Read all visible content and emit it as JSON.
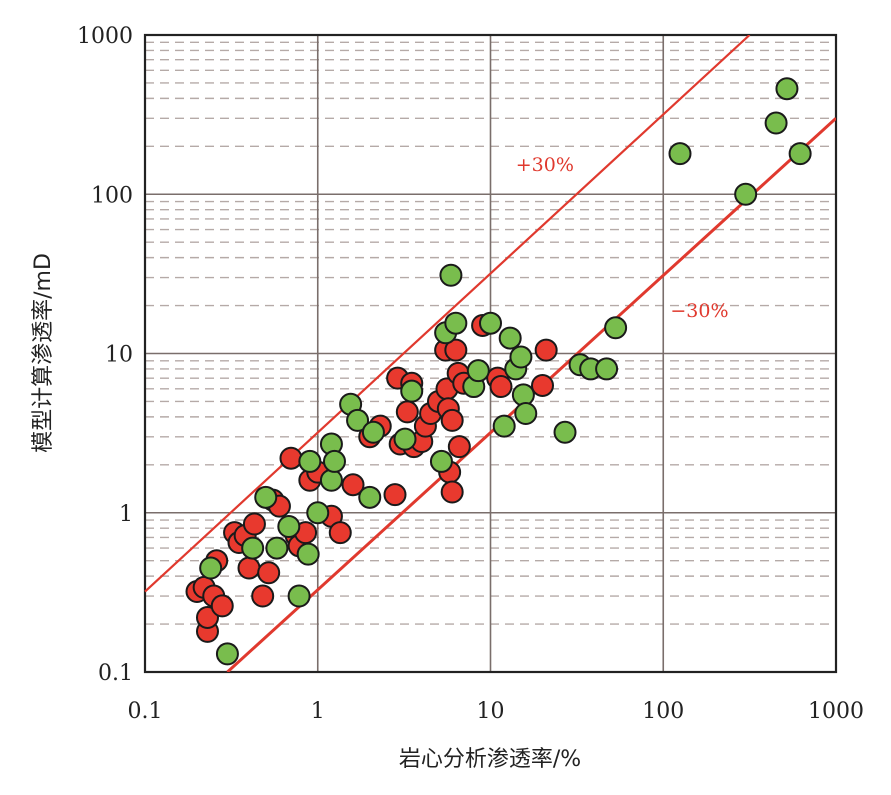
{
  "chart_data": {
    "type": "scatter",
    "scale": {
      "x": "log",
      "y": "log"
    },
    "xlabel": "岩心分析渗透率/%",
    "ylabel": "模型计算渗透率/mD",
    "xlim": [
      0.1,
      1000
    ],
    "ylim": [
      0.1,
      1000
    ],
    "grid": true,
    "x_ticks": [
      {
        "value": 0.1,
        "label": "0.1"
      },
      {
        "value": 1,
        "label": "1"
      },
      {
        "value": 10,
        "label": "10"
      },
      {
        "value": 100,
        "label": "100"
      },
      {
        "value": 1000,
        "label": "1000"
      }
    ],
    "y_ticks": [
      {
        "value": 0.1,
        "label": "0.1"
      },
      {
        "value": 1,
        "label": "1"
      },
      {
        "value": 10,
        "label": "10"
      },
      {
        "value": 100,
        "label": "100"
      },
      {
        "value": 1000,
        "label": "1000"
      }
    ],
    "colors": {
      "red_fill": "#e8392e",
      "green_fill": "#79bd4d",
      "marker_edge": "#1a1a1a",
      "reference_line": "#e0392e",
      "major_grid": "#7a6e6b",
      "minor_grid": "#b5aaa7"
    },
    "reference_lines": [
      {
        "label": "+30%",
        "points": [
          [
            0.1,
            0.32
          ],
          [
            316,
            1000
          ]
        ],
        "label_at": [
          14,
          140
        ]
      },
      {
        "label": "-30%",
        "points": [
          [
            0.3,
            0.1
          ],
          [
            1000,
            300
          ]
        ],
        "label_at": [
          110,
          17
        ]
      }
    ],
    "series": [
      {
        "color": "#e8392e",
        "points": [
          [
            0.2,
            0.32
          ],
          [
            0.22,
            0.34
          ],
          [
            0.23,
            0.18
          ],
          [
            0.23,
            0.22
          ],
          [
            0.25,
            0.3
          ],
          [
            0.26,
            0.5
          ],
          [
            0.28,
            0.26
          ],
          [
            0.33,
            0.75
          ],
          [
            0.35,
            0.65
          ],
          [
            0.38,
            0.72
          ],
          [
            0.4,
            0.45
          ],
          [
            0.43,
            0.85
          ],
          [
            0.48,
            0.3
          ],
          [
            0.52,
            0.42
          ],
          [
            0.55,
            1.2
          ],
          [
            0.6,
            1.1
          ],
          [
            0.7,
            2.2
          ],
          [
            0.75,
            0.72
          ],
          [
            0.78,
            0.62
          ],
          [
            0.85,
            0.75
          ],
          [
            0.9,
            1.6
          ],
          [
            1.0,
            1.8
          ],
          [
            1.2,
            0.95
          ],
          [
            1.35,
            0.75
          ],
          [
            1.6,
            1.5
          ],
          [
            2.0,
            3.0
          ],
          [
            2.3,
            3.5
          ],
          [
            2.8,
            1.3
          ],
          [
            2.9,
            7.0
          ],
          [
            3.0,
            2.7
          ],
          [
            3.3,
            4.3
          ],
          [
            3.5,
            6.5
          ],
          [
            3.6,
            2.6
          ],
          [
            4.0,
            2.8
          ],
          [
            4.2,
            3.5
          ],
          [
            4.5,
            4.2
          ],
          [
            5.0,
            5.0
          ],
          [
            5.5,
            10.5
          ],
          [
            5.6,
            6.0
          ],
          [
            5.7,
            4.5
          ],
          [
            5.8,
            1.8
          ],
          [
            6.0,
            1.35
          ],
          [
            6.0,
            3.8
          ],
          [
            6.3,
            10.5
          ],
          [
            6.5,
            7.5
          ],
          [
            6.6,
            2.6
          ],
          [
            7.0,
            6.5
          ],
          [
            9.0,
            15.0
          ],
          [
            11.0,
            7.0
          ],
          [
            11.5,
            6.2
          ],
          [
            20.0,
            6.3
          ],
          [
            21.0,
            10.5
          ]
        ]
      },
      {
        "color": "#79bd4d",
        "points": [
          [
            0.24,
            0.45
          ],
          [
            0.3,
            0.13
          ],
          [
            0.42,
            0.6
          ],
          [
            0.5,
            1.25
          ],
          [
            0.58,
            0.6
          ],
          [
            0.68,
            0.82
          ],
          [
            0.78,
            0.3
          ],
          [
            0.88,
            0.55
          ],
          [
            0.9,
            2.1
          ],
          [
            1.0,
            1.0
          ],
          [
            1.2,
            2.7
          ],
          [
            1.2,
            1.6
          ],
          [
            1.25,
            2.1
          ],
          [
            1.55,
            4.8
          ],
          [
            1.7,
            3.8
          ],
          [
            2.0,
            1.25
          ],
          [
            2.1,
            3.2
          ],
          [
            3.2,
            2.9
          ],
          [
            3.5,
            5.8
          ],
          [
            5.2,
            2.1
          ],
          [
            5.5,
            13.5
          ],
          [
            5.9,
            31.0
          ],
          [
            6.3,
            15.5
          ],
          [
            8.0,
            6.2
          ],
          [
            8.5,
            7.8
          ],
          [
            10.0,
            15.5
          ],
          [
            12.0,
            3.5
          ],
          [
            13.0,
            12.5
          ],
          [
            14.0,
            8.0
          ],
          [
            15.0,
            9.5
          ],
          [
            15.5,
            5.5
          ],
          [
            16.0,
            4.2
          ],
          [
            27.0,
            3.2
          ],
          [
            33.0,
            8.5
          ],
          [
            38.0,
            8.0
          ],
          [
            47.0,
            8.0
          ],
          [
            53.0,
            14.5
          ],
          [
            125.0,
            180.0
          ],
          [
            300.0,
            100.0
          ],
          [
            450.0,
            280.0
          ],
          [
            520.0,
            460.0
          ],
          [
            620.0,
            180.0
          ]
        ]
      }
    ]
  }
}
